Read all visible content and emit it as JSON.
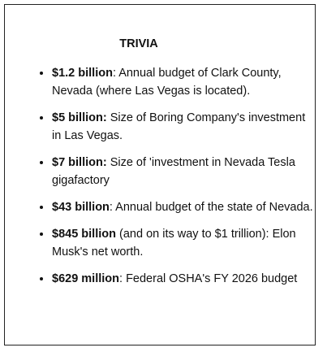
{
  "title": "TRIVIA",
  "items": [
    {
      "bold": "$1.2 billion",
      "text": ": Annual budget of Clark County, Nevada (where Las Vegas is located)."
    },
    {
      "bold": "$5 billion:",
      "text": " Size of Boring Company's investment in Las Vegas."
    },
    {
      "bold": "$7 billion:",
      "text": " Size of 'investment in Nevada Tesla gigafactory"
    },
    {
      "bold": "$43 billion",
      "text": ": Annual budget of the state of Nevada."
    },
    {
      "bold": "$845 billion",
      "text": " (and on its way to $1 trillion): Elon Musk's net worth."
    },
    {
      "bold": "$629 million",
      "text": ": Federal OSHA's FY 2026 budget"
    }
  ]
}
